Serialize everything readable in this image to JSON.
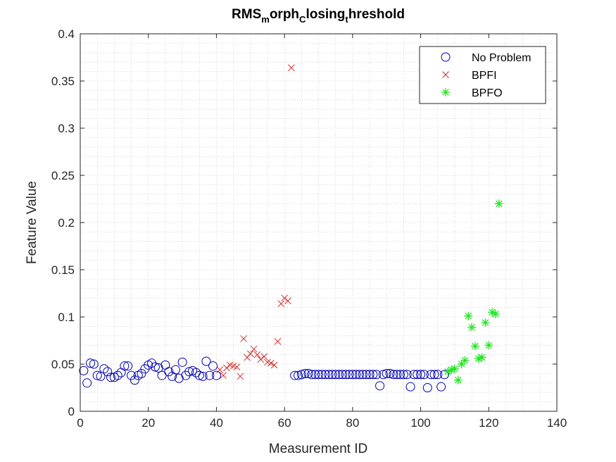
{
  "chart_data": {
    "type": "scatter",
    "title_parts": [
      {
        "text": "RMS",
        "sub": false
      },
      {
        "text": "m",
        "sub": true
      },
      {
        "text": "orph",
        "sub": false
      },
      {
        "text": "C",
        "sub": true
      },
      {
        "text": "losing",
        "sub": false
      },
      {
        "text": "t",
        "sub": true
      },
      {
        "text": "hreshold",
        "sub": false
      }
    ],
    "xlabel": "Measurement ID",
    "ylabel": "Feature Value",
    "xlim": [
      0,
      140
    ],
    "ylim": [
      0,
      0.4
    ],
    "xticks": [
      "0",
      "20",
      "40",
      "60",
      "80",
      "100",
      "120",
      "140"
    ],
    "yticks": [
      "0",
      "0.05",
      "0.1",
      "0.15",
      "0.2",
      "0.25",
      "0.3",
      "0.35",
      "0.4"
    ],
    "grid": "minor dotted",
    "legend_position": "top-right",
    "series": [
      {
        "name": "No Problem",
        "marker": "circle",
        "color": "#0000b3",
        "x": [
          1,
          2,
          3,
          4,
          5,
          6,
          7,
          8,
          9,
          10,
          11,
          12,
          13,
          14,
          15,
          16,
          17,
          18,
          19,
          20,
          21,
          22,
          23,
          24,
          25,
          26,
          27,
          28,
          29,
          30,
          31,
          32,
          33,
          34,
          35,
          36,
          37,
          38,
          39,
          40,
          63,
          64,
          65,
          66,
          67,
          68,
          69,
          70,
          71,
          72,
          73,
          74,
          75,
          76,
          77,
          78,
          79,
          80,
          81,
          82,
          83,
          84,
          85,
          86,
          87,
          88,
          89,
          90,
          91,
          92,
          93,
          94,
          95,
          96,
          97,
          98,
          99,
          100,
          101,
          102,
          103,
          104,
          105,
          106,
          107
        ],
        "y": [
          0.043,
          0.03,
          0.051,
          0.05,
          0.038,
          0.037,
          0.045,
          0.042,
          0.036,
          0.036,
          0.038,
          0.041,
          0.048,
          0.048,
          0.038,
          0.033,
          0.038,
          0.04,
          0.045,
          0.049,
          0.051,
          0.047,
          0.046,
          0.038,
          0.049,
          0.042,
          0.037,
          0.044,
          0.035,
          0.052,
          0.038,
          0.042,
          0.043,
          0.041,
          0.038,
          0.037,
          0.053,
          0.038,
          0.048,
          0.038,
          0.038,
          0.038,
          0.039,
          0.04,
          0.04,
          0.039,
          0.039,
          0.039,
          0.039,
          0.039,
          0.039,
          0.039,
          0.039,
          0.039,
          0.039,
          0.039,
          0.039,
          0.039,
          0.039,
          0.039,
          0.039,
          0.039,
          0.039,
          0.039,
          0.039,
          0.027,
          0.039,
          0.04,
          0.04,
          0.039,
          0.039,
          0.039,
          0.039,
          0.039,
          0.026,
          0.039,
          0.039,
          0.039,
          0.039,
          0.025,
          0.039,
          0.039,
          0.039,
          0.026,
          0.039
        ]
      },
      {
        "name": "BPFI",
        "marker": "x",
        "color": "#d92b2b",
        "x": [
          41,
          42,
          43,
          44,
          45,
          46,
          47,
          48,
          49,
          50,
          51,
          52,
          53,
          54,
          55,
          56,
          57,
          58,
          59,
          60,
          61,
          62
        ],
        "y": [
          0.044,
          0.038,
          0.046,
          0.049,
          0.048,
          0.047,
          0.037,
          0.077,
          0.057,
          0.061,
          0.066,
          0.06,
          0.055,
          0.058,
          0.052,
          0.051,
          0.049,
          0.074,
          0.114,
          0.12,
          0.117,
          0.364
        ]
      },
      {
        "name": "BPFO",
        "marker": "star",
        "color": "#1fe61f",
        "x": [
          108,
          109,
          110,
          111,
          112,
          113,
          114,
          115,
          116,
          117,
          118,
          119,
          120,
          121,
          122,
          123
        ],
        "y": [
          0.042,
          0.044,
          0.045,
          0.033,
          0.05,
          0.054,
          0.101,
          0.089,
          0.069,
          0.056,
          0.057,
          0.094,
          0.07,
          0.105,
          0.103,
          0.22
        ]
      }
    ]
  }
}
